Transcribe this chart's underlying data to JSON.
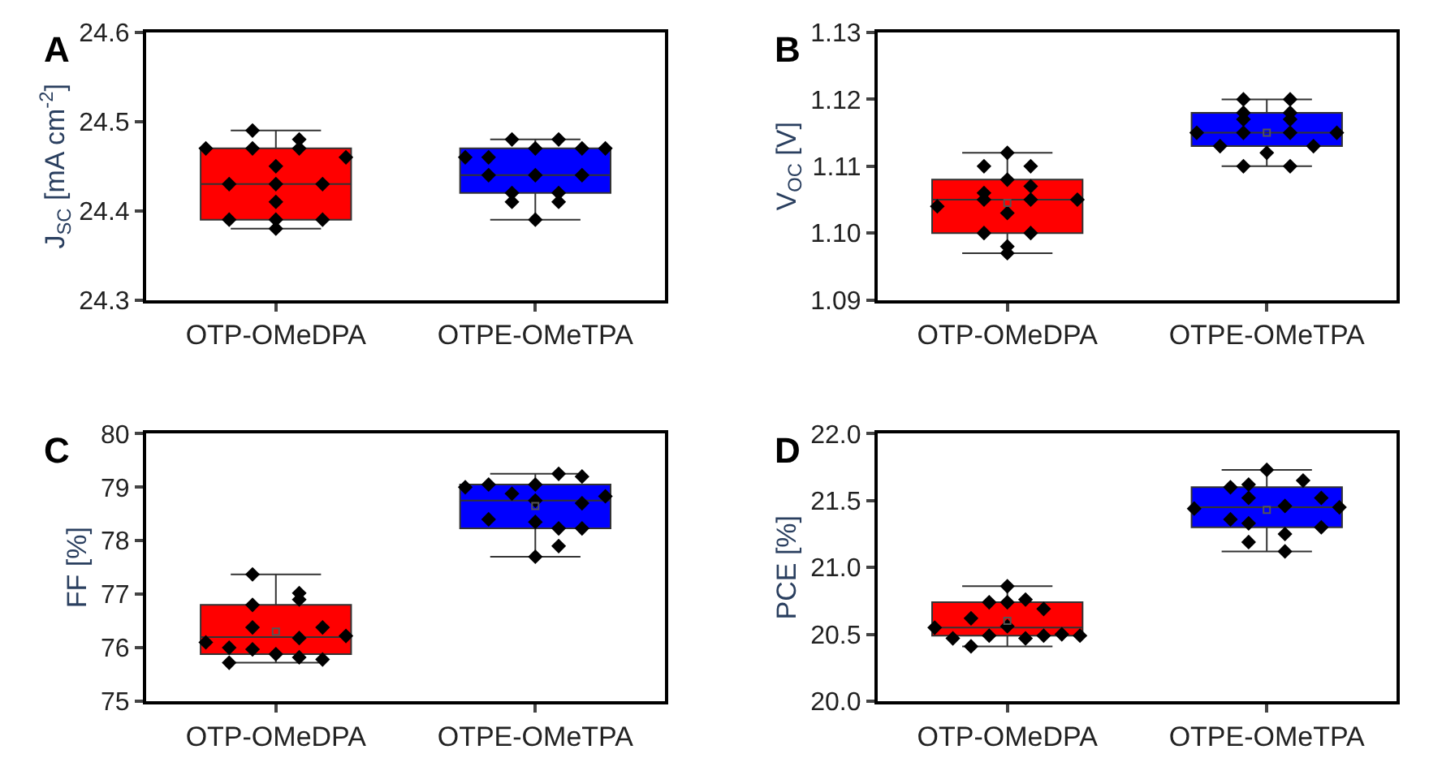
{
  "chart_data": [
    {
      "type": "box",
      "title": "A",
      "ylabel": "J$_{SC}$ [mA cm$^{-2}$]",
      "categories": [
        "OTP-OMeDPA",
        "OTPE-OMeTPA"
      ],
      "colors": [
        "#ff0000",
        "#0000ff"
      ],
      "boxes": [
        {
          "low": 24.38,
          "q1": 24.39,
          "median": 24.43,
          "q3": 24.47,
          "high": 24.49
        },
        {
          "low": 24.39,
          "q1": 24.42,
          "median": 24.44,
          "q3": 24.47,
          "high": 24.48
        }
      ],
      "series": [
        {
          "type": "scatter",
          "color": "#000000",
          "x": [
            "OTP-OMeDPA",
            "OTPE-OMeTPA"
          ],
          "values": [
            24.47,
            24.46
          ]
        },
        {
          "type": "scatter",
          "color": "#000000",
          "x": [
            "OTP-OMeDPA",
            "OTP-OMeDPA",
            "OTPE-OMeTPA",
            "OTPE-OMeTPA"
          ],
          "values": [
            24.43,
            24.39,
            24.46,
            24.44
          ]
        },
        {
          "type": "scatter",
          "color": "#000000",
          "x": [
            "OTP-OMeDPA",
            "OTP-OMeDPA",
            "OTPE-OMeTPA",
            "OTPE-OMeTPA",
            "OTPE-OMeTPA"
          ],
          "values": [
            24.49,
            24.47,
            24.48,
            24.42,
            24.41
          ]
        },
        {
          "type": "scatter",
          "color": "#000000",
          "x": [
            "OTP-OMeDPA",
            "OTP-OMeDPA",
            "OTP-OMeDPA",
            "OTP-OMeDPA",
            "OTP-OMeDPA",
            "OTPE-OMeTPA",
            "OTPE-OMeTPA",
            "OTPE-OMeTPA"
          ],
          "values": [
            24.45,
            24.43,
            24.41,
            24.39,
            24.38,
            24.47,
            24.44,
            24.39
          ]
        },
        {
          "type": "scatter",
          "color": "#000000",
          "x": [
            "OTP-OMeDPA",
            "OTP-OMeDPA",
            "OTPE-OMeTPA",
            "OTPE-OMeTPA",
            "OTPE-OMeTPA"
          ],
          "values": [
            24.48,
            24.47,
            24.48,
            24.42,
            24.41
          ]
        },
        {
          "type": "scatter",
          "color": "#000000",
          "x": [
            "OTP-OMeDPA",
            "OTP-OMeDPA",
            "OTPE-OMeTPA",
            "OTPE-OMeTPA"
          ],
          "values": [
            24.43,
            24.39,
            24.47,
            24.44
          ]
        },
        {
          "type": "scatter",
          "color": "#000000",
          "x": [
            "OTP-OMeDPA",
            "OTPE-OMeTPA"
          ],
          "values": [
            24.46,
            24.47
          ]
        }
      ],
      "marker": "diamond",
      "ylim": [
        24.3,
        24.6
      ],
      "yticks": [
        24.3,
        24.4,
        24.5,
        24.6
      ]
    },
    {
      "type": "box",
      "title": "B",
      "ylabel": "V$_{OC}$ [V]",
      "categories": [
        "OTP-OMeDPA",
        "OTPE-OMeTPA"
      ],
      "colors": [
        "#ff0000",
        "#0000ff"
      ],
      "boxes": [
        {
          "low": 1.097,
          "q1": 1.1,
          "median": 1.105,
          "q3": 1.108,
          "high": 1.112,
          "mean": 1.1045
        },
        {
          "low": 1.11,
          "q1": 1.113,
          "median": 1.115,
          "q3": 1.118,
          "high": 1.12,
          "mean": 1.115
        }
      ],
      "series": [
        {
          "type": "scatter",
          "color": "#000000",
          "x": [
            "OTP-OMeDPA",
            "OTPE-OMeTPA"
          ],
          "values": [
            1.104,
            1.115
          ]
        },
        {
          "type": "scatter",
          "color": "#000000",
          "x": [
            "OTPE-OMeTPA"
          ],
          "values": [
            1.113
          ]
        },
        {
          "type": "scatter",
          "color": "#000000",
          "x": [
            "OTP-OMeDPA",
            "OTP-OMeDPA",
            "OTP-OMeDPA",
            "OTP-OMeDPA",
            "OTPE-OMeTPA",
            "OTPE-OMeTPA",
            "OTPE-OMeTPA",
            "OTPE-OMeTPA",
            "OTPE-OMeTPA"
          ],
          "values": [
            1.11,
            1.106,
            1.105,
            1.1,
            1.12,
            1.118,
            1.117,
            1.115,
            1.11
          ]
        },
        {
          "type": "scatter",
          "color": "#000000",
          "x": [
            "OTP-OMeDPA",
            "OTP-OMeDPA",
            "OTP-OMeDPA",
            "OTP-OMeDPA",
            "OTP-OMeDPA",
            "OTPE-OMeTPA"
          ],
          "values": [
            1.112,
            1.108,
            1.103,
            1.098,
            1.097,
            1.112
          ]
        },
        {
          "type": "scatter",
          "color": "#000000",
          "x": [
            "OTP-OMeDPA",
            "OTP-OMeDPA",
            "OTP-OMeDPA",
            "OTP-OMeDPA",
            "OTPE-OMeTPA",
            "OTPE-OMeTPA",
            "OTPE-OMeTPA",
            "OTPE-OMeTPA",
            "OTPE-OMeTPA"
          ],
          "values": [
            1.11,
            1.107,
            1.105,
            1.1,
            1.12,
            1.118,
            1.117,
            1.115,
            1.11
          ]
        },
        {
          "type": "scatter",
          "color": "#000000",
          "x": [
            "OTPE-OMeTPA"
          ],
          "values": [
            1.113
          ]
        },
        {
          "type": "scatter",
          "color": "#000000",
          "x": [
            "OTP-OMeDPA",
            "OTPE-OMeTPA"
          ],
          "values": [
            1.105,
            1.115
          ]
        }
      ],
      "marker": "diamond",
      "ylim": [
        1.09,
        1.13
      ],
      "yticks": [
        {
          "value": 1.09,
          "label": "1.09"
        },
        {
          "value": 1.1,
          "label": "1.10"
        },
        {
          "value": 1.11,
          "label": "1.11"
        },
        {
          "value": 1.12,
          "label": "1.12"
        },
        {
          "value": 1.13,
          "label": "1.13"
        }
      ]
    },
    {
      "type": "box",
      "title": "C",
      "ylabel": "FF [%]",
      "categories": [
        "OTP-OMeDPA",
        "OTPE-OMeTPA"
      ],
      "colors": [
        "#ff0000",
        "#0000ff"
      ],
      "boxes": [
        {
          "low": 75.72,
          "q1": 75.88,
          "median": 76.2,
          "q3": 76.8,
          "high": 77.37,
          "mean": 76.3
        },
        {
          "low": 77.7,
          "q1": 78.23,
          "median": 78.75,
          "q3": 79.05,
          "high": 79.25,
          "mean": 78.65
        }
      ],
      "series": [
        {
          "type": "scatter",
          "color": "#000000",
          "x": [
            "OTP-OMeDPA",
            "OTPE-OMeTPA"
          ],
          "values": [
            76.1,
            79.0
          ]
        },
        {
          "type": "scatter",
          "color": "#000000",
          "x": [
            "OTP-OMeDPA",
            "OTP-OMeDPA",
            "OTPE-OMeTPA",
            "OTPE-OMeTPA"
          ],
          "values": [
            75.72,
            76.0,
            78.4,
            79.05
          ]
        },
        {
          "type": "scatter",
          "color": "#000000",
          "x": [
            "OTP-OMeDPA",
            "OTP-OMeDPA",
            "OTP-OMeDPA",
            "OTP-OMeDPA",
            "OTPE-OMeTPA"
          ],
          "values": [
            75.97,
            76.38,
            76.8,
            77.37,
            78.88
          ]
        },
        {
          "type": "scatter",
          "color": "#000000",
          "x": [
            "OTP-OMeDPA",
            "OTPE-OMeTPA",
            "OTPE-OMeTPA",
            "OTPE-OMeTPA",
            "OTPE-OMeTPA"
          ],
          "values": [
            75.88,
            78.35,
            79.05,
            77.7,
            78.75
          ]
        },
        {
          "type": "scatter",
          "color": "#000000",
          "x": [
            "OTP-OMeDPA",
            "OTP-OMeDPA",
            "OTP-OMeDPA",
            "OTP-OMeDPA",
            "OTPE-OMeTPA",
            "OTPE-OMeTPA",
            "OTPE-OMeTPA"
          ],
          "values": [
            77.02,
            76.9,
            76.18,
            75.82,
            79.25,
            78.23,
            77.9
          ]
        },
        {
          "type": "scatter",
          "color": "#000000",
          "x": [
            "OTP-OMeDPA",
            "OTP-OMeDPA",
            "OTPE-OMeTPA",
            "OTPE-OMeTPA",
            "OTPE-OMeTPA"
          ],
          "values": [
            76.38,
            75.78,
            78.7,
            79.2,
            78.23
          ]
        },
        {
          "type": "scatter",
          "color": "#000000",
          "x": [
            "OTP-OMeDPA",
            "OTPE-OMeTPA"
          ],
          "values": [
            76.22,
            78.83
          ]
        }
      ],
      "marker": "diamond",
      "ylim": [
        75,
        80
      ],
      "yticks": [
        75,
        76,
        77,
        78,
        79,
        80
      ]
    },
    {
      "type": "box",
      "title": "D",
      "ylabel": "PCE [%]",
      "categories": [
        "OTP-OMeDPA",
        "OTPE-OMeTPA"
      ],
      "colors": [
        "#ff0000",
        "#0000ff"
      ],
      "boxes": [
        {
          "low": 20.41,
          "q1": 20.49,
          "median": 20.55,
          "q3": 20.74,
          "high": 20.86,
          "mean": 20.6
        },
        {
          "low": 21.12,
          "q1": 21.3,
          "median": 21.45,
          "q3": 21.6,
          "high": 21.73,
          "mean": 21.43
        }
      ],
      "series": [
        {
          "type": "scatter",
          "color": "#000000",
          "x": [
            "OTP-OMeDPA",
            "OTPE-OMeTPA"
          ],
          "values": [
            20.55,
            21.44
          ]
        },
        {
          "type": "scatter",
          "color": "#000000",
          "x": [
            "OTP-OMeDPA"
          ],
          "values": [
            20.47
          ]
        },
        {
          "type": "scatter",
          "color": "#000000",
          "x": [
            "OTP-OMeDPA",
            "OTP-OMeDPA",
            "OTPE-OMeTPA",
            "OTPE-OMeTPA"
          ],
          "values": [
            20.62,
            20.41,
            21.6,
            21.36
          ]
        },
        {
          "type": "scatter",
          "color": "#000000",
          "x": [
            "OTP-OMeDPA",
            "OTP-OMeDPA",
            "OTPE-OMeTPA",
            "OTPE-OMeTPA",
            "OTPE-OMeTPA",
            "OTPE-OMeTPA"
          ],
          "values": [
            20.74,
            20.49,
            21.62,
            21.52,
            21.33,
            21.19
          ]
        },
        {
          "type": "scatter",
          "color": "#000000",
          "x": [
            "OTP-OMeDPA",
            "OTP-OMeDPA",
            "OTP-OMeDPA",
            "OTPE-OMeTPA"
          ],
          "values": [
            20.86,
            20.74,
            20.56,
            21.73
          ]
        },
        {
          "type": "scatter",
          "color": "#000000",
          "x": [
            "OTP-OMeDPA",
            "OTP-OMeDPA",
            "OTPE-OMeTPA",
            "OTPE-OMeTPA",
            "OTPE-OMeTPA"
          ],
          "values": [
            20.76,
            20.47,
            21.46,
            21.25,
            21.12
          ]
        },
        {
          "type": "scatter",
          "color": "#000000",
          "x": [
            "OTP-OMeDPA",
            "OTP-OMeDPA",
            "OTPE-OMeTPA"
          ],
          "values": [
            20.69,
            20.49,
            21.65
          ]
        },
        {
          "type": "scatter",
          "color": "#000000",
          "x": [
            "OTP-OMeDPA",
            "OTPE-OMeTPA",
            "OTPE-OMeTPA"
          ],
          "values": [
            20.5,
            21.52,
            21.3
          ]
        },
        {
          "type": "scatter",
          "color": "#000000",
          "x": [
            "OTP-OMeDPA",
            "OTPE-OMeTPA"
          ],
          "values": [
            20.49,
            21.45
          ]
        }
      ],
      "marker": "diamond",
      "ylim": [
        20.0,
        22.0
      ],
      "yticks": [
        {
          "value": 20.0,
          "label": "20.0"
        },
        {
          "value": 20.5,
          "label": "20.5"
        },
        {
          "value": 21.0,
          "label": "21.0"
        },
        {
          "value": 21.5,
          "label": "21.5"
        },
        {
          "value": 22.0,
          "label": "22.0"
        }
      ]
    }
  ]
}
